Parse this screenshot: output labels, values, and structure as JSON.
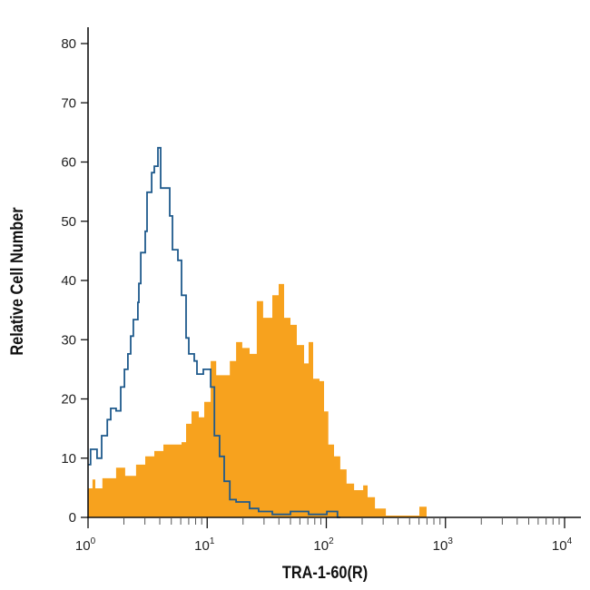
{
  "chart_data": {
    "type": "histogram",
    "xlabel": "TRA-1-60(R)",
    "ylabel": "Relative Cell Number",
    "xscale": "log",
    "xlim": [
      1,
      10000
    ],
    "ylim": [
      0,
      80
    ],
    "yticks": [
      0,
      10,
      20,
      30,
      40,
      50,
      60,
      70,
      80
    ],
    "xticks": [
      {
        "base": "10",
        "exp": "0"
      },
      {
        "base": "10",
        "exp": "1"
      },
      {
        "base": "10",
        "exp": "2"
      },
      {
        "base": "10",
        "exp": "3"
      },
      {
        "base": "10",
        "exp": "4"
      }
    ],
    "grid": false,
    "series": [
      {
        "style": "filled",
        "color": "#F7A21E",
        "x": [
          1.0,
          1.09,
          1.15,
          1.32,
          1.5,
          1.72,
          2.05,
          2.53,
          3.02,
          3.6,
          4.29,
          5.11,
          6.09,
          6.65,
          7.39,
          8.5,
          9.45,
          10.7,
          11.9,
          13.9,
          15.5,
          17.5,
          19.7,
          22.7,
          26.1,
          29.5,
          35.2,
          39.8,
          44.2,
          50.0,
          56.5,
          65.1,
          71.0,
          77.5,
          87.7,
          95.7,
          104,
          116,
          131,
          148,
          171,
          204,
          222,
          256,
          316,
          534,
          604,
          695
        ],
        "y": [
          4.9,
          6.4,
          4.9,
          6.6,
          6.6,
          8.4,
          7.0,
          8.9,
          10.3,
          11.2,
          12.3,
          12.3,
          12.7,
          15.8,
          17.9,
          16.9,
          19.5,
          26.4,
          24,
          24,
          26.4,
          29.6,
          28.6,
          27.6,
          36.5,
          33.7,
          37.5,
          39.4,
          33.7,
          32.5,
          29.1,
          26,
          29.6,
          23.4,
          23,
          17.9,
          12.3,
          10.3,
          8.1,
          5.7,
          4.6,
          5.4,
          3.4,
          1.5,
          0.3,
          0.3,
          1.8,
          0
        ]
      },
      {
        "style": "outline",
        "color": "#1F5A8C",
        "x": [
          1.0,
          1.05,
          1.19,
          1.3,
          1.45,
          1.55,
          1.72,
          1.88,
          2.02,
          2.16,
          2.28,
          2.4,
          2.62,
          2.67,
          2.77,
          3.02,
          3.13,
          3.42,
          3.6,
          3.86,
          4.07,
          4.85,
          5.11,
          5.68,
          6.09,
          6.65,
          7.01,
          7.79,
          8.21,
          9.28,
          10.7,
          11.5,
          12.7,
          13.9,
          15.5,
          17.5,
          22.7,
          27.0,
          35.2,
          50.0,
          71.0,
          101,
          124
        ],
        "y": [
          8.9,
          11.5,
          10,
          13.8,
          16.5,
          18.4,
          18,
          22,
          25,
          27.6,
          30.6,
          33.4,
          36.3,
          39.5,
          44.7,
          48.3,
          54.9,
          58.2,
          59.3,
          62.4,
          55.6,
          50.9,
          45.2,
          43.4,
          37.5,
          30.3,
          27.6,
          26.4,
          24.2,
          25,
          22,
          13.8,
          10.3,
          6.1,
          3,
          2.6,
          1.5,
          1,
          0.5,
          1,
          0.5,
          1,
          0
        ]
      }
    ]
  }
}
